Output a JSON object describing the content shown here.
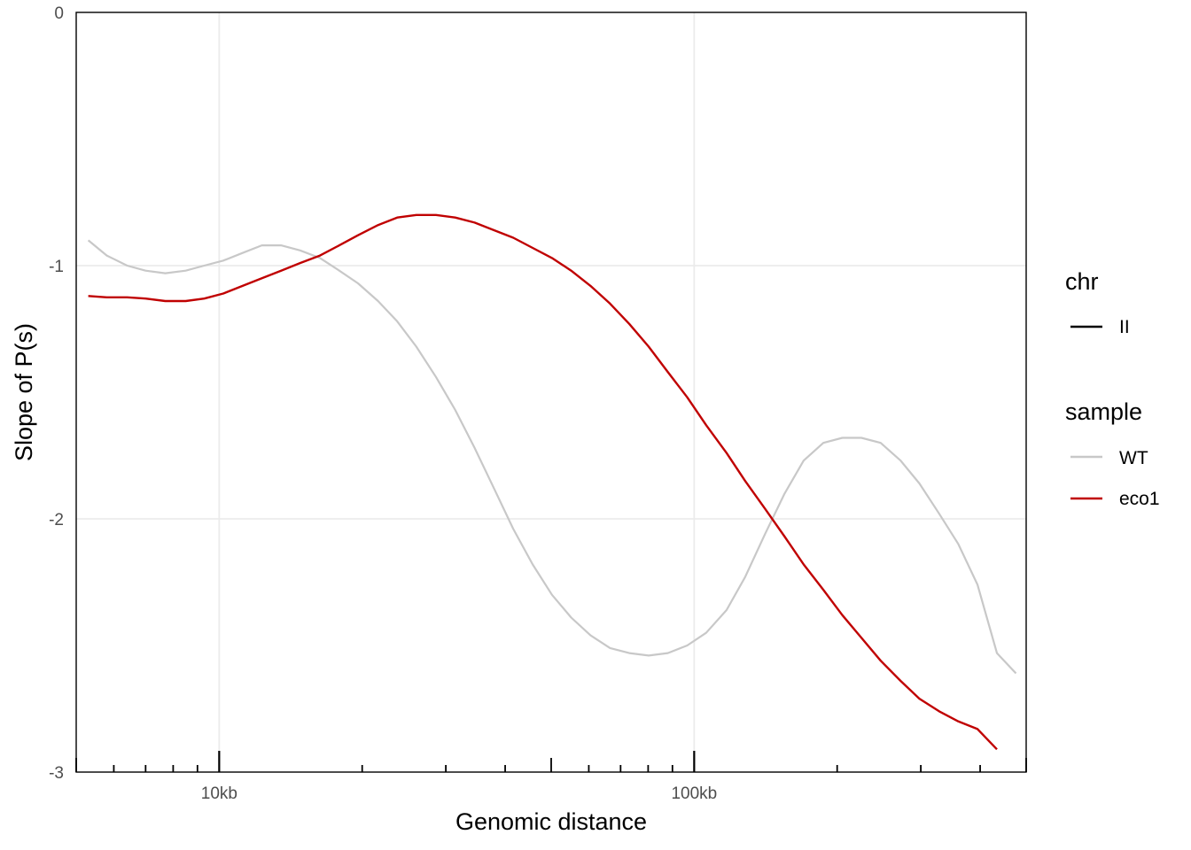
{
  "chart_data": {
    "type": "line",
    "xlabel": "Genomic distance",
    "ylabel": "Slope of P(s)",
    "x_scale": "log10",
    "xlim": [
      5000,
      500000
    ],
    "ylim": [
      -3,
      0
    ],
    "x_ticks": [
      {
        "value": 10000,
        "label": "10kb"
      },
      {
        "value": 100000,
        "label": "100kb"
      }
    ],
    "y_ticks": [
      {
        "value": 0,
        "label": "0"
      },
      {
        "value": -1,
        "label": "-1"
      },
      {
        "value": -2,
        "label": "-2"
      },
      {
        "value": -3,
        "label": "-3"
      }
    ],
    "grid": true,
    "legend_position": "right",
    "legends": [
      {
        "title": "chr",
        "entries": [
          {
            "label": "II",
            "color": "#000000"
          }
        ]
      },
      {
        "title": "sample",
        "entries": [
          {
            "label": "WT",
            "color": "#c8c8c8"
          },
          {
            "label": "eco1",
            "color": "#c00000"
          }
        ]
      }
    ],
    "series": [
      {
        "name": "WT",
        "color": "#c8c8c8",
        "x": [
          5300,
          5800,
          6400,
          7000,
          7700,
          8500,
          9300,
          10200,
          11200,
          12300,
          13500,
          14800,
          16300,
          17900,
          19600,
          21600,
          23700,
          26000,
          28600,
          31400,
          34500,
          37900,
          41600,
          45700,
          50200,
          55100,
          60500,
          66500,
          73000,
          80200,
          88000,
          96700,
          106000,
          117000,
          128000,
          141000,
          155000,
          170000,
          187000,
          205000,
          225000,
          247000,
          272000,
          298000,
          328000,
          360000,
          395000,
          434000,
          476000
        ],
        "y": [
          -0.9,
          -0.96,
          -1.0,
          -1.02,
          -1.03,
          -1.02,
          -1.0,
          -0.98,
          -0.95,
          -0.92,
          -0.92,
          -0.94,
          -0.97,
          -1.02,
          -1.07,
          -1.14,
          -1.22,
          -1.32,
          -1.44,
          -1.57,
          -1.72,
          -1.88,
          -2.04,
          -2.18,
          -2.3,
          -2.39,
          -2.46,
          -2.51,
          -2.53,
          -2.54,
          -2.53,
          -2.5,
          -2.45,
          -2.36,
          -2.23,
          -2.06,
          -1.9,
          -1.77,
          -1.7,
          -1.68,
          -1.68,
          -1.7,
          -1.77,
          -1.86,
          -1.98,
          -2.1,
          -2.26,
          -2.53,
          -2.61
        ]
      },
      {
        "name": "eco1",
        "color": "#c00000",
        "x": [
          5300,
          5800,
          6400,
          7000,
          7700,
          8500,
          9300,
          10200,
          11200,
          12300,
          13500,
          14800,
          16300,
          17900,
          19600,
          21600,
          23700,
          26000,
          28600,
          31400,
          34500,
          37900,
          41600,
          45700,
          50200,
          55100,
          60500,
          66500,
          73000,
          80200,
          88000,
          96700,
          106000,
          117000,
          128000,
          141000,
          155000,
          170000,
          187000,
          205000,
          225000,
          247000,
          272000,
          298000,
          328000,
          360000,
          395000,
          434000
        ],
        "y": [
          -1.12,
          -1.125,
          -1.125,
          -1.13,
          -1.14,
          -1.14,
          -1.13,
          -1.11,
          -1.08,
          -1.05,
          -1.02,
          -0.99,
          -0.96,
          -0.92,
          -0.88,
          -0.84,
          -0.81,
          -0.8,
          -0.8,
          -0.81,
          -0.83,
          -0.86,
          -0.89,
          -0.93,
          -0.97,
          -1.02,
          -1.08,
          -1.15,
          -1.23,
          -1.32,
          -1.42,
          -1.52,
          -1.63,
          -1.74,
          -1.85,
          -1.96,
          -2.07,
          -2.18,
          -2.28,
          -2.38,
          -2.47,
          -2.56,
          -2.64,
          -2.71,
          -2.76,
          -2.8,
          -2.83,
          -2.91
        ]
      }
    ]
  }
}
